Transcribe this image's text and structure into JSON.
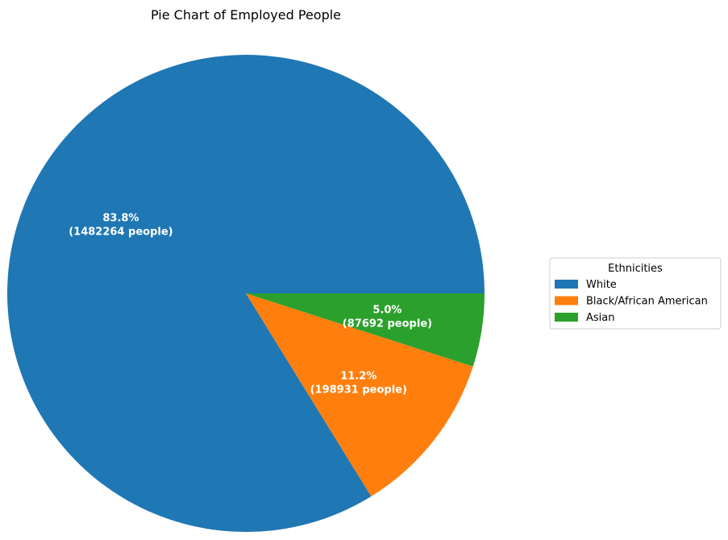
{
  "chart_data": {
    "type": "pie",
    "title": "Pie Chart of Employed People",
    "legend_title": "Ethnicities",
    "legend_position": "center-right",
    "slices": [
      {
        "label": "White",
        "value": 1482264,
        "percent_label": "83.8%",
        "count_label": "(1482264 people)",
        "color": "#1f77b4"
      },
      {
        "label": "Black/African American",
        "value": 198931,
        "percent_label": "11.2%",
        "count_label": "(198931 people)",
        "color": "#ff7f0e"
      },
      {
        "label": "Asian",
        "value": 87692,
        "percent_label": "5.0%",
        "count_label": "(87692 people)",
        "color": "#2ca02c"
      }
    ]
  }
}
